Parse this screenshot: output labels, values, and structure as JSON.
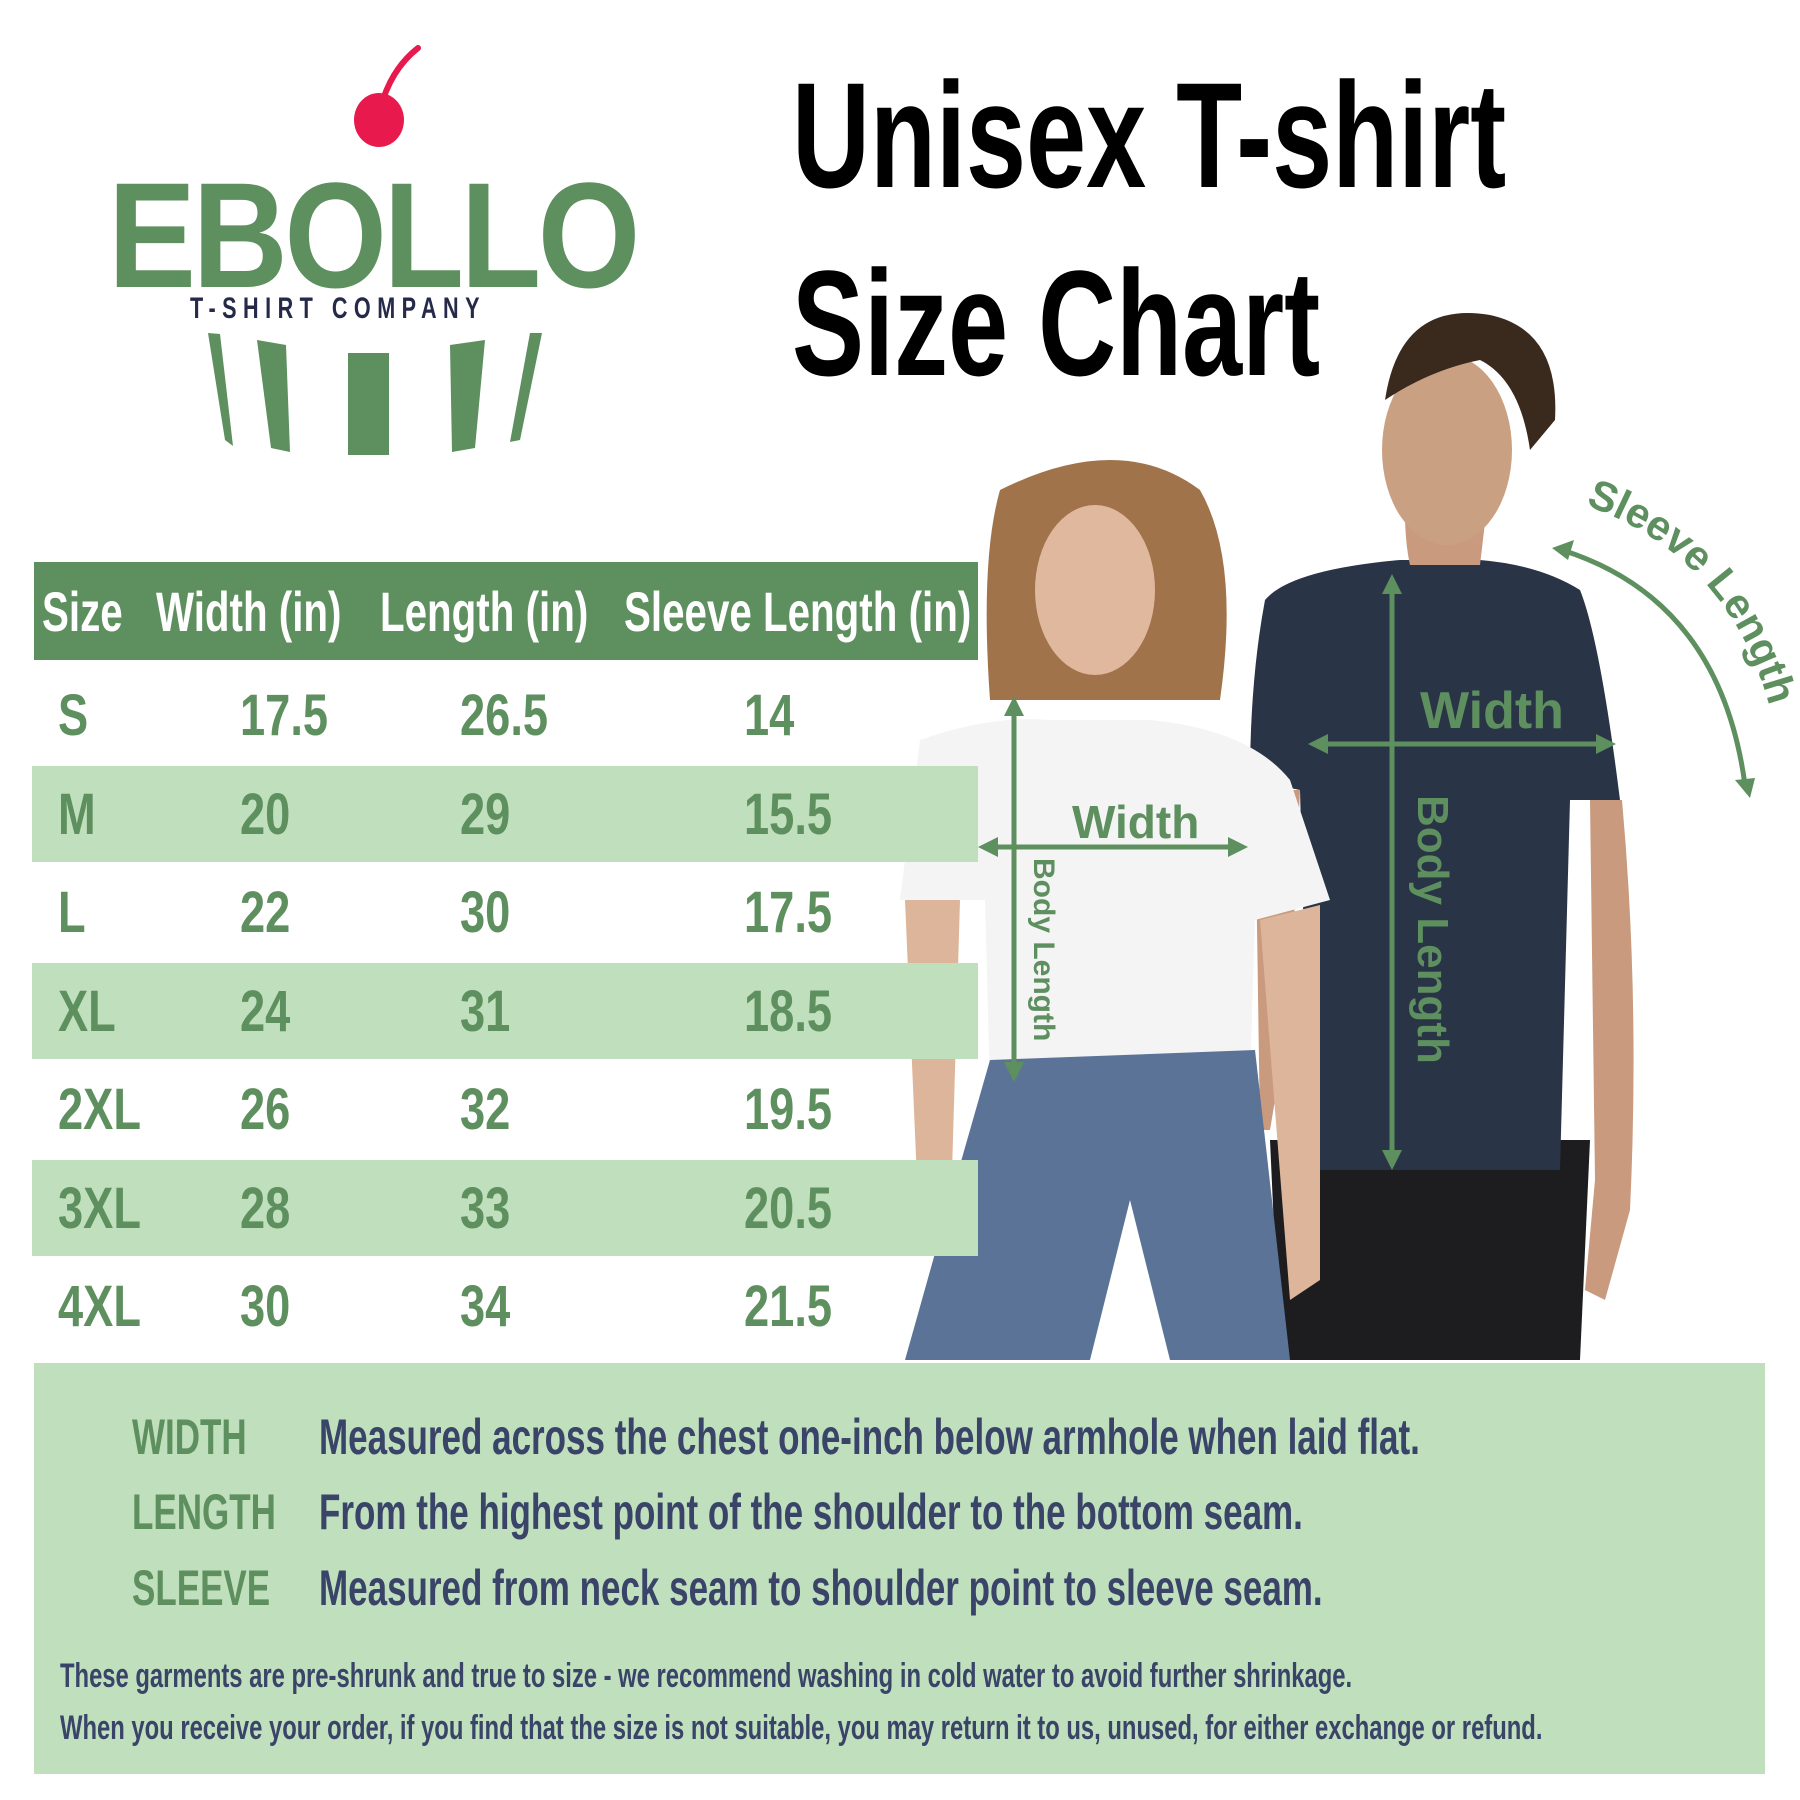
{
  "brand": {
    "name": "EBOLLO",
    "tagline": "T-SHIRT COMPANY",
    "colors": {
      "green": "#5e8f5f",
      "cherry": "#e8194c",
      "navy": "#252a4a"
    }
  },
  "title": {
    "line1": "Unisex T-shirt",
    "line2": "Size Chart"
  },
  "table": {
    "headers": [
      "Size",
      "Width (in)",
      "Length (in)",
      "Sleeve Length (in)"
    ],
    "rows": [
      [
        "S",
        "17.5",
        "26.5",
        "14"
      ],
      [
        "M",
        "20",
        "29",
        "15.5"
      ],
      [
        "L",
        "22",
        "30",
        "17.5"
      ],
      [
        "XL",
        "24",
        "31",
        "18.5"
      ],
      [
        "2XL",
        "26",
        "32",
        "19.5"
      ],
      [
        "3XL",
        "28",
        "33",
        "20.5"
      ],
      [
        "4XL",
        "30",
        "34",
        "21.5"
      ]
    ]
  },
  "diagram": {
    "woman": {
      "width_label": "Width",
      "length_label": "Body Length"
    },
    "man": {
      "width_label": "Width",
      "length_label": "Body Length",
      "sleeve_label": "Sleeve Length"
    }
  },
  "definitions": [
    {
      "term": "WIDTH",
      "text": "Measured across the chest one-inch below armhole when laid flat."
    },
    {
      "term": "LENGTH",
      "text": "From the highest point of the shoulder to the bottom seam."
    },
    {
      "term": "SLEEVE",
      "text": "Measured from neck seam to shoulder point to sleeve seam."
    }
  ],
  "notes": [
    "These garments are pre-shrunk and true to size - we recommend washing in cold water to avoid further shrinkage.",
    "When you receive your order, if you find that the size is not suitable, you may return it to us, unused, for either exchange or refund."
  ],
  "colors": {
    "header_bg": "#5e8f5f",
    "row_alt_bg": "#c0e0bd",
    "desc_text": "#3a4468"
  }
}
